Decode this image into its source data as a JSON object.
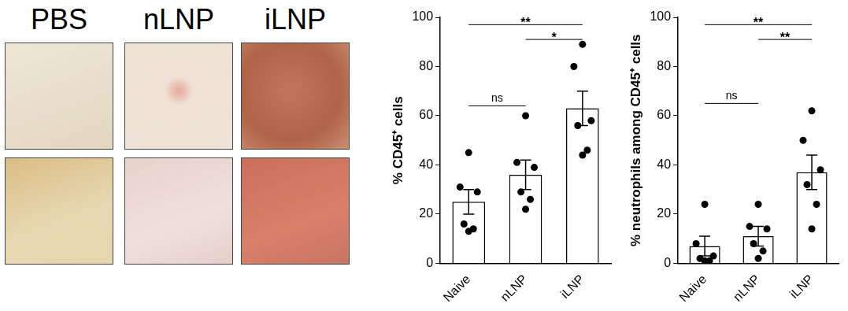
{
  "photos": {
    "labels": [
      "PBS",
      "nLNP",
      "iLNP"
    ]
  },
  "chart_data": [
    {
      "type": "bar",
      "y_label": "% CD45⁺ cells",
      "categories": [
        "Naive",
        "nLNP",
        "iLNP"
      ],
      "values": [
        25,
        36,
        63
      ],
      "errors": [
        5,
        6,
        7
      ],
      "points": [
        [
          45,
          31,
          29,
          16,
          14,
          13
        ],
        [
          60,
          41,
          39,
          29,
          26,
          22
        ],
        [
          89,
          80,
          58,
          56,
          46,
          44
        ]
      ],
      "color": "#ffffff",
      "ylim": [
        0,
        100
      ],
      "yticks": [
        0,
        20,
        40,
        60,
        80,
        100
      ],
      "grid": false,
      "annotations": [
        {
          "from": "Naive",
          "to": "iLNP",
          "y": 97,
          "text": "**"
        },
        {
          "from": "nLNP",
          "to": "iLNP",
          "y": 91,
          "text": "*"
        },
        {
          "from": "Naive",
          "to": "nLNP",
          "y": 64,
          "text": "ns"
        }
      ]
    },
    {
      "type": "bar",
      "y_label": "% neutrophils among CD45⁺ cells",
      "categories": [
        "Naive",
        "nLNP",
        "iLNP"
      ],
      "values": [
        7,
        11,
        37
      ],
      "errors": [
        4,
        4,
        7
      ],
      "points": [
        [
          24,
          8,
          3,
          2,
          1,
          1
        ],
        [
          24,
          15,
          14,
          8,
          5,
          2
        ],
        [
          62,
          50,
          38,
          32,
          24,
          14
        ]
      ],
      "color": "#ffffff",
      "ylim": [
        0,
        100
      ],
      "yticks": [
        0,
        20,
        40,
        60,
        80,
        100
      ],
      "grid": false,
      "annotations": [
        {
          "from": "Naive",
          "to": "iLNP",
          "y": 97,
          "text": "**"
        },
        {
          "from": "nLNP",
          "to": "iLNP",
          "y": 91,
          "text": "**"
        },
        {
          "from": "Naive",
          "to": "nLNP",
          "y": 65,
          "text": "ns"
        }
      ]
    }
  ]
}
